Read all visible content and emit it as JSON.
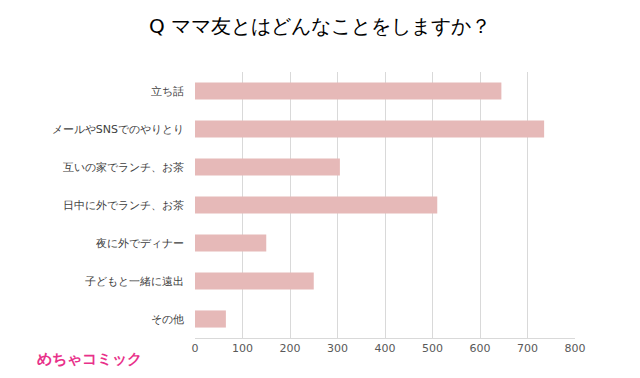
{
  "chart_data": {
    "type": "bar",
    "orientation": "horizontal",
    "title": "Q ママ友とはどんなことをしますか？",
    "categories": [
      "立ち話",
      "メールやSNSでのやりとり",
      "互いの家でランチ、お茶",
      "日中に外でランチ、お茶",
      "夜に外でディナー",
      "子どもと一緒に遠出",
      "その他"
    ],
    "values": [
      645,
      735,
      305,
      510,
      150,
      250,
      65
    ],
    "color": "#e6b9b8",
    "xlim": [
      0,
      800
    ],
    "xticks": [
      0,
      100,
      200,
      300,
      400,
      500,
      600,
      700,
      800
    ],
    "grid": true,
    "annotations": [
      "めちゃコミック"
    ]
  }
}
